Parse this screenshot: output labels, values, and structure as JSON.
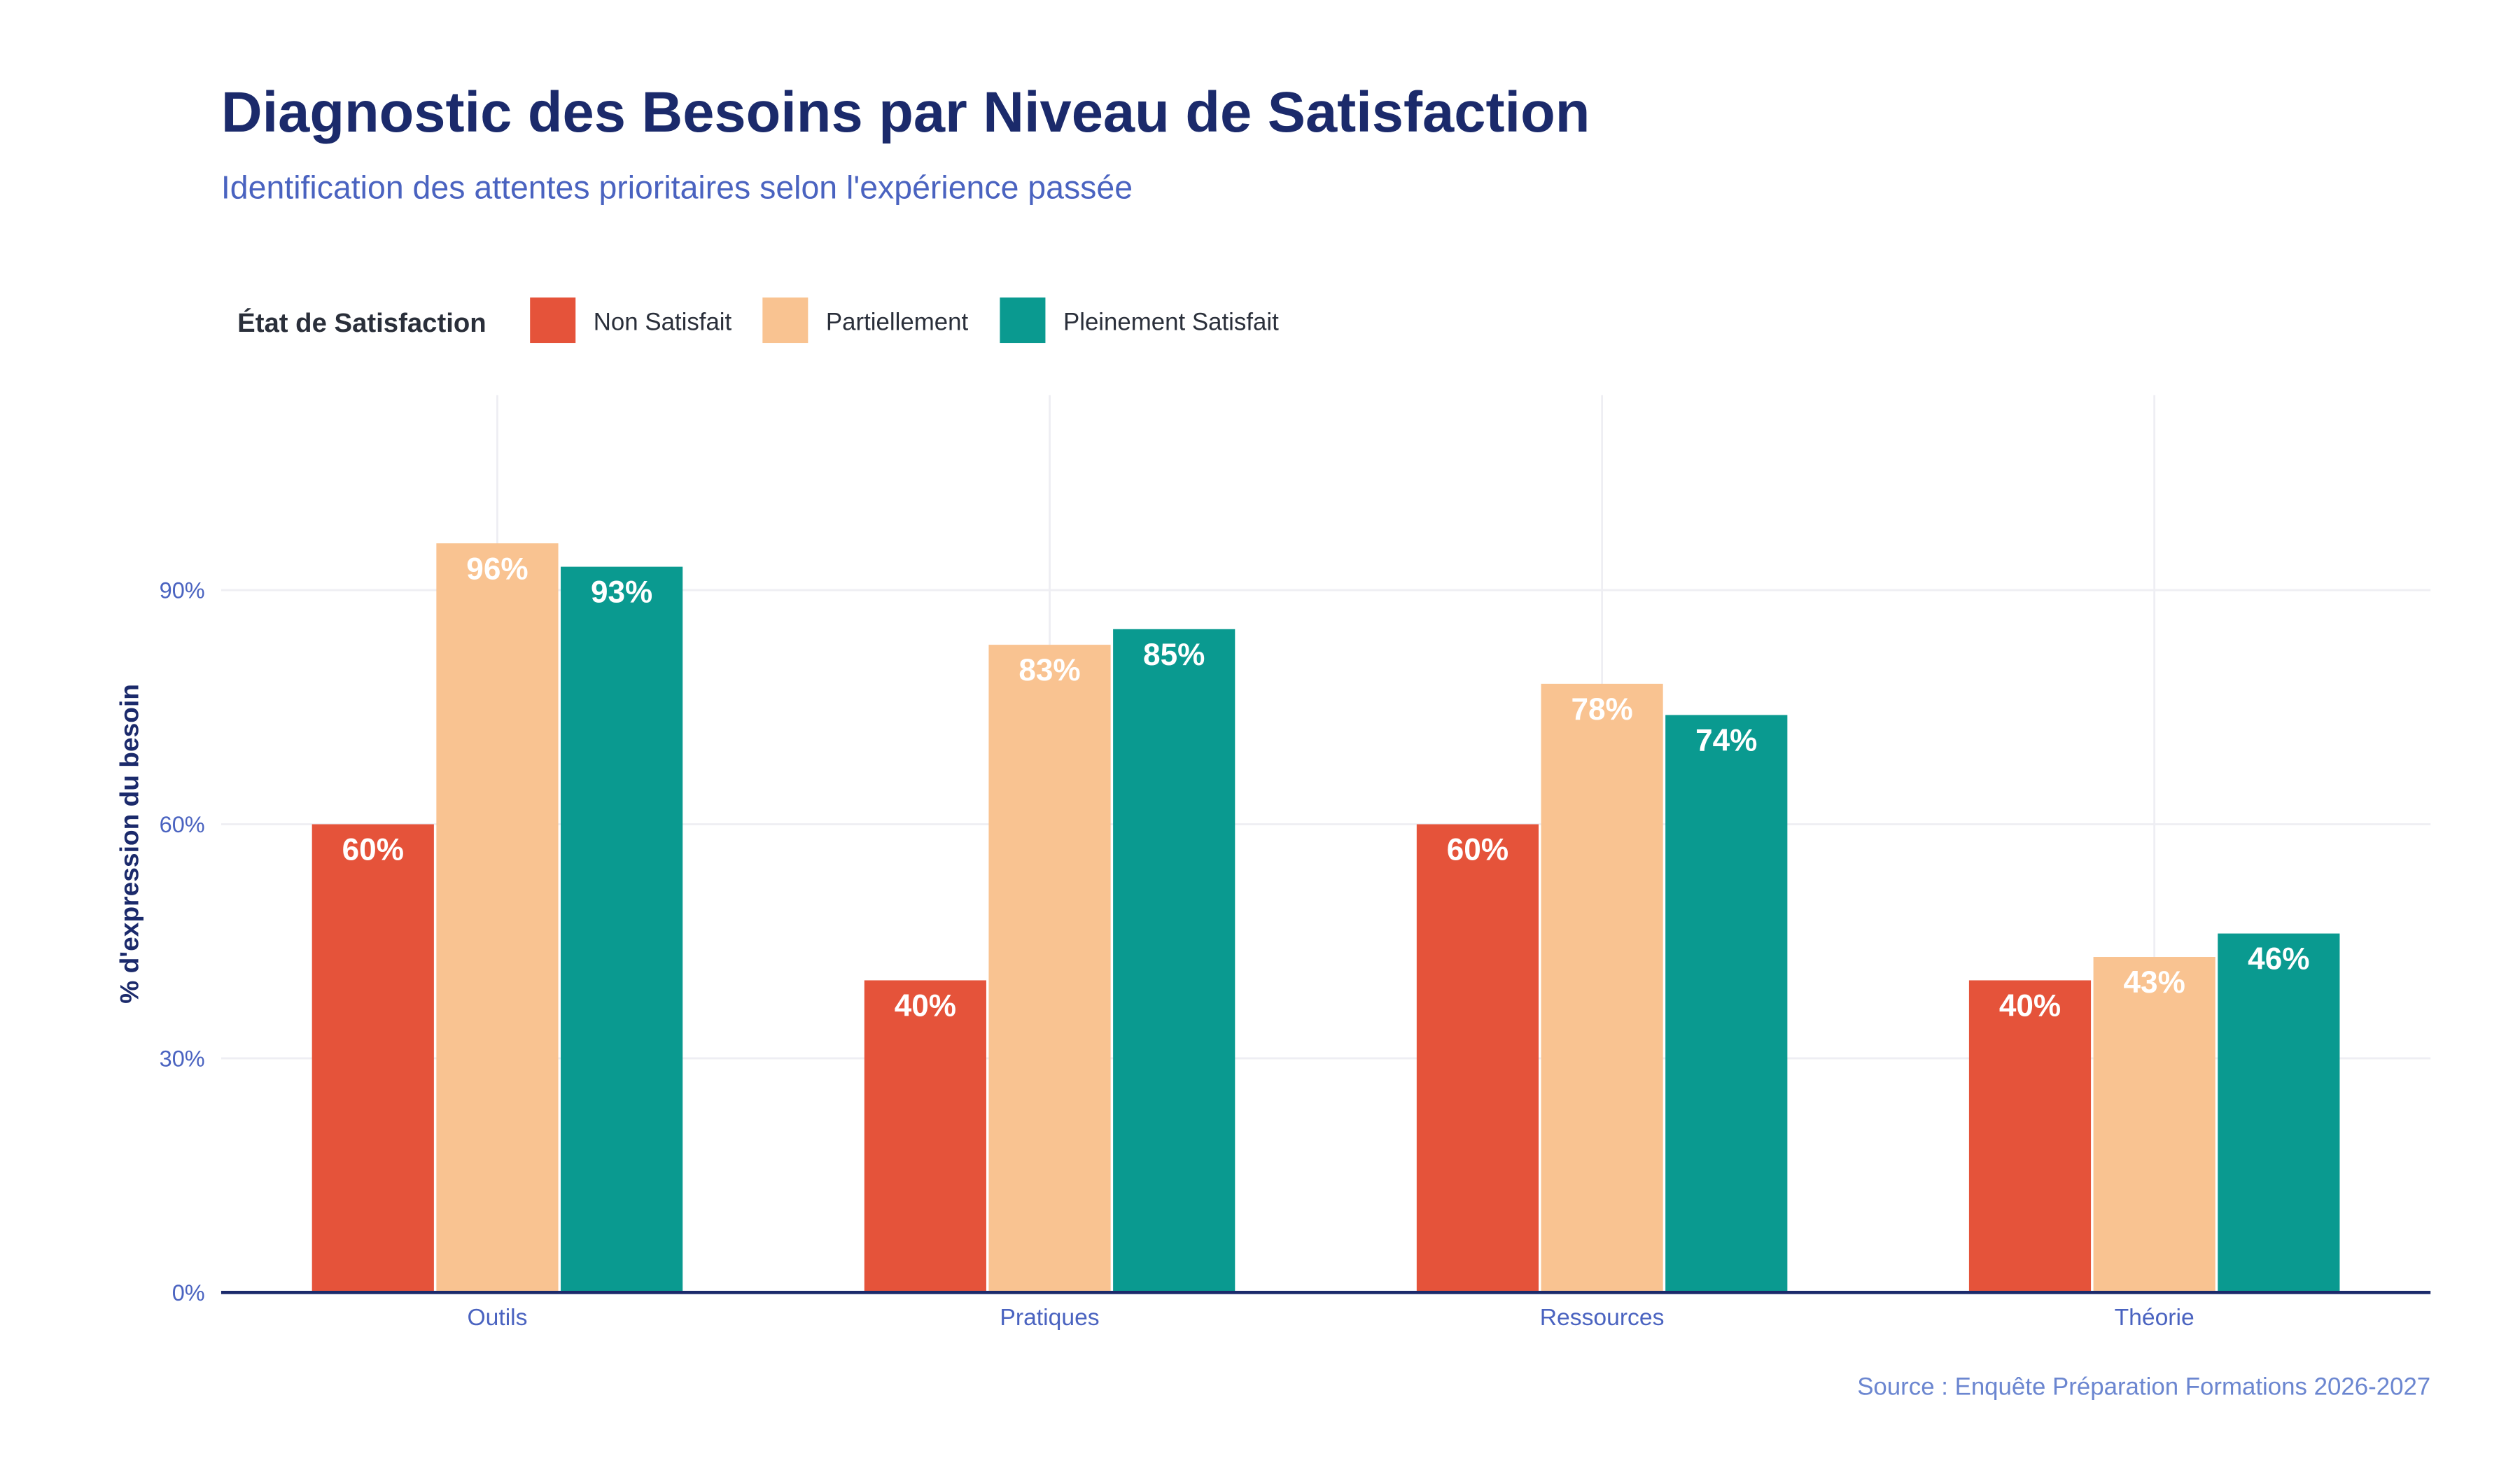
{
  "chart_data": {
    "type": "bar",
    "title": "Diagnostic des Besoins par Niveau de Satisfaction",
    "subtitle": "Identification des attentes prioritaires selon l'expérience passée",
    "legend_title": "État de Satisfaction",
    "legend_position": "top-left",
    "xlabel": "",
    "ylabel": "% d'expression du besoin",
    "ylim": [
      0,
      115
    ],
    "yticks": [
      0,
      30,
      60,
      90
    ],
    "ytick_labels": [
      "0%",
      "30%",
      "60%",
      "90%"
    ],
    "grid": true,
    "categories": [
      "Outils",
      "Pratiques",
      "Ressources",
      "Théorie"
    ],
    "series": [
      {
        "name": "Non Satisfait",
        "color": "#e5533a",
        "values": [
          60,
          40,
          60,
          40
        ],
        "labels": [
          "60%",
          "40%",
          "60%",
          "40%"
        ]
      },
      {
        "name": "Partiellement",
        "color": "#f9c391",
        "values": [
          96,
          83,
          78,
          43
        ],
        "labels": [
          "96%",
          "83%",
          "78%",
          "43%"
        ]
      },
      {
        "name": "Pleinement Satisfait",
        "color": "#0a9a90",
        "values": [
          93,
          85,
          74,
          46
        ],
        "labels": [
          "93%",
          "85%",
          "74%",
          "46%"
        ]
      }
    ],
    "source": "Source : Enquête Préparation Formations 2026-2027"
  },
  "colors": {
    "title": "#1b2a6b",
    "subtitle": "#4a63c0",
    "axis": "#1b2a6b",
    "tick": "#4a63c0",
    "source": "#6b86d0",
    "grid": "#eeeef3"
  }
}
